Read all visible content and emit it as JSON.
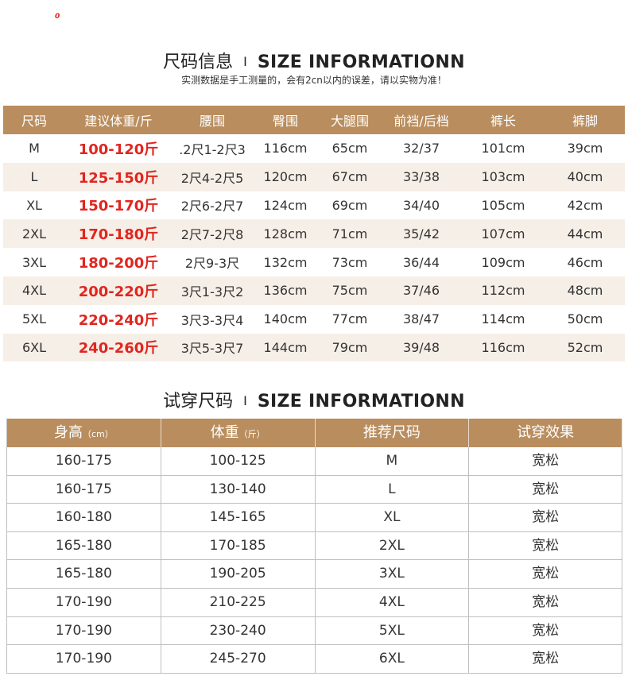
{
  "corner_mark": "0",
  "section1": {
    "title_cn": "尺码信息",
    "title_sep": "I",
    "title_en": "SIZE INFORMATIONN",
    "note": "实测数据是手工测量的，会有2cn以内的误差，请以实物为准！",
    "headers": [
      "尺码",
      "建议体重/斤",
      "腰围",
      "臀围",
      "大腿围",
      "前裆/后档",
      "裤长",
      "裤脚"
    ],
    "rows": [
      [
        "M",
        "100-120斤",
        ".2尺1-2尺3",
        "116cm",
        "65cm",
        "32/37",
        "101cm",
        "39cm"
      ],
      [
        "L",
        "125-150斤",
        "2尺4-2尺5",
        "120cm",
        "67cm",
        "33/38",
        "103cm",
        "40cm"
      ],
      [
        "XL",
        "150-170斤",
        "2尺6-2尺7",
        "124cm",
        "69cm",
        "34/40",
        "105cm",
        "42cm"
      ],
      [
        "2XL",
        "170-180斤",
        "2尺7-2尺8",
        "128cm",
        "71cm",
        "35/42",
        "107cm",
        "44cm"
      ],
      [
        "3XL",
        "180-200斤",
        "2尺9-3尺",
        "132cm",
        "73cm",
        "36/44",
        "109cm",
        "46cm"
      ],
      [
        "4XL",
        "200-220斤",
        "3尺1-3尺2",
        "136cm",
        "75cm",
        "37/46",
        "112cm",
        "48cm"
      ],
      [
        "5XL",
        "220-240斤",
        "3尺3-3尺4",
        "140cm",
        "77cm",
        "38/47",
        "114cm",
        "50cm"
      ],
      [
        "6XL",
        "240-260斤",
        "3尺5-3尺7",
        "144cm",
        "79cm",
        "39/48",
        "116cm",
        "52cm"
      ]
    ]
  },
  "section2": {
    "title_cn": "试穿尺码",
    "title_sep": "I",
    "title_en": "SIZE INFORMATIONN",
    "headers": [
      {
        "main": "身高",
        "unit": "（cm）"
      },
      {
        "main": "体重",
        "unit": "（斤）"
      },
      {
        "main": "推荐尺码",
        "unit": ""
      },
      {
        "main": "试穿效果",
        "unit": ""
      }
    ],
    "rows": [
      [
        "160-175",
        "100-125",
        "M",
        "宽松"
      ],
      [
        "160-175",
        "130-140",
        "L",
        "宽松"
      ],
      [
        "160-180",
        "145-165",
        "XL",
        "宽松"
      ],
      [
        "165-180",
        "170-185",
        "2XL",
        "宽松"
      ],
      [
        "165-180",
        "190-205",
        "3XL",
        "宽松"
      ],
      [
        "170-190",
        "210-225",
        "4XL",
        "宽松"
      ],
      [
        "170-190",
        "230-240",
        "5XL",
        "宽松"
      ],
      [
        "170-190",
        "245-270",
        "6XL",
        "宽松"
      ]
    ]
  },
  "colors": {
    "header_bg": "#b98d5e",
    "weight_red": "#e0261f",
    "alt_row": "#f6efe7"
  }
}
